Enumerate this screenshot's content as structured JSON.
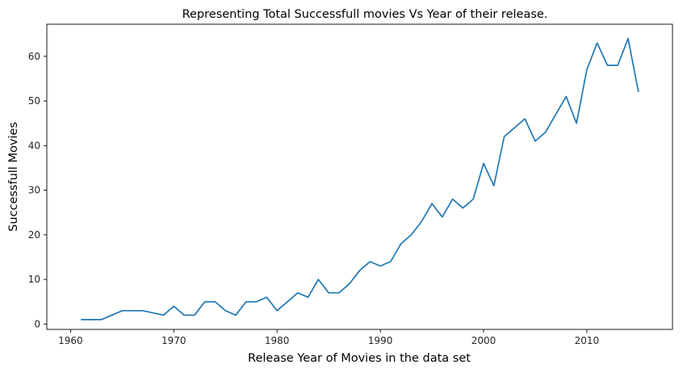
{
  "chart_data": {
    "type": "line",
    "title": "Representing Total Successfull movies Vs Year of their release.",
    "xlabel": "Release Year of Movies in the data set",
    "ylabel": "Successfull Movies",
    "xlim": [
      1957.7,
      2018.3
    ],
    "ylim": [
      -1.2,
      67.2
    ],
    "xticks": [
      1960,
      1970,
      1980,
      1990,
      2000,
      2010
    ],
    "yticks": [
      0,
      10,
      20,
      30,
      40,
      50,
      60
    ],
    "grid": false,
    "series": [
      {
        "color": "#1f77b4",
        "x": [
          1961,
          1962,
          1963,
          1964,
          1965,
          1966,
          1967,
          1968,
          1969,
          1970,
          1971,
          1972,
          1973,
          1974,
          1975,
          1976,
          1977,
          1978,
          1979,
          1980,
          1981,
          1982,
          1983,
          1984,
          1985,
          1986,
          1987,
          1988,
          1989,
          1990,
          1991,
          1992,
          1993,
          1994,
          1995,
          1996,
          1997,
          1998,
          1999,
          2000,
          2001,
          2002,
          2003,
          2004,
          2005,
          2006,
          2007,
          2008,
          2009,
          2010,
          2011,
          2012,
          2013,
          2014,
          2015
        ],
        "y": [
          1,
          1,
          1,
          2,
          3,
          3,
          3,
          2.5,
          2,
          4,
          2,
          2,
          5,
          5,
          3,
          2,
          5,
          5,
          6,
          3,
          5,
          7,
          6,
          10,
          7,
          7,
          9,
          12,
          14,
          13,
          14,
          18,
          20,
          23,
          27,
          24,
          28,
          26,
          28,
          36,
          31,
          42,
          44,
          46,
          41,
          43,
          47,
          51,
          45,
          57,
          63,
          58,
          58,
          64,
          52
        ]
      }
    ]
  }
}
